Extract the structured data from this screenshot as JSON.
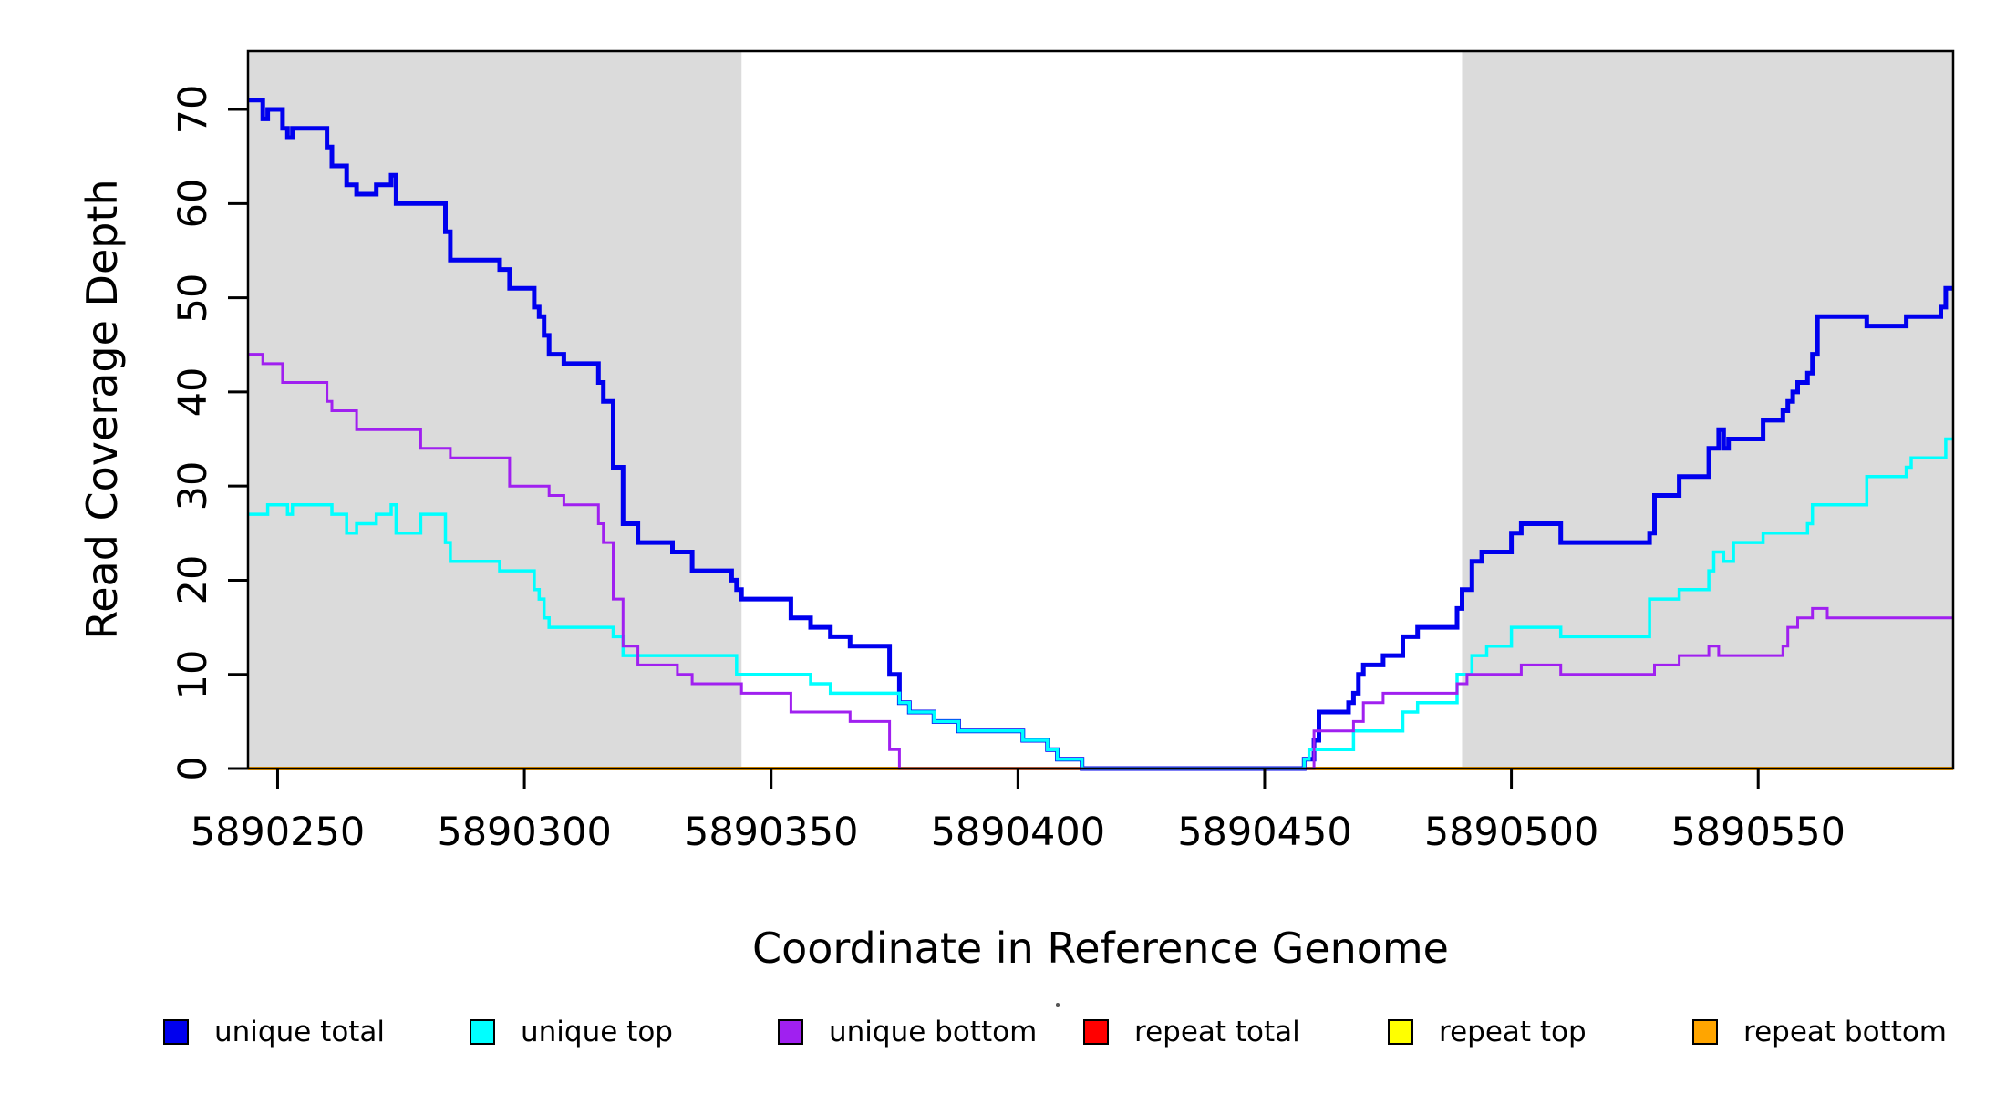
{
  "chart_data": {
    "type": "line",
    "step": "post",
    "title": "",
    "xlabel": "Coordinate in Reference Genome",
    "ylabel": "Read Coverage Depth",
    "xlim": [
      5890244,
      5890589.5
    ],
    "ylim": [
      0,
      76.2
    ],
    "xticks": [
      5890250,
      5890300,
      5890350,
      5890400,
      5890450,
      5890500,
      5890550
    ],
    "yticks": [
      0,
      10,
      20,
      30,
      40,
      50,
      60,
      70
    ],
    "grid": false,
    "background_color": "#ffffff",
    "axis_color": "#000000",
    "shaded_regions": {
      "color": "#dbdbdb",
      "regions": [
        [
          5890244,
          5890344
        ],
        [
          5890490,
          5890589.5
        ]
      ]
    },
    "legend": {
      "position": "bottom",
      "entries": [
        {
          "label": "unique total",
          "color": "#0000ee"
        },
        {
          "label": "unique top",
          "color": "#00ffff"
        },
        {
          "label": "unique bottom",
          "color": "#a020f0"
        },
        {
          "label": "repeat total",
          "color": "#ff0000"
        },
        {
          "label": "repeat top",
          "color": "#ffff00"
        },
        {
          "label": "repeat bottom",
          "color": "#ffa500"
        }
      ]
    },
    "series": [
      {
        "name": "repeat total",
        "color": "#ff0000",
        "width": 3,
        "points": [
          [
            5890244,
            0
          ]
        ]
      },
      {
        "name": "repeat top",
        "color": "#ffff00",
        "width": 3,
        "points": [
          [
            5890244,
            0
          ]
        ]
      },
      {
        "name": "repeat bottom",
        "color": "#ffa500",
        "width": 4,
        "points": [
          [
            5890244,
            0
          ]
        ]
      },
      {
        "name": "unique total",
        "color": "#0000ee",
        "width": 5,
        "points": [
          [
            5890244,
            71
          ],
          [
            5890247,
            69
          ],
          [
            5890248,
            70
          ],
          [
            5890251,
            68
          ],
          [
            5890252,
            67
          ],
          [
            5890253,
            68
          ],
          [
            5890260,
            66
          ],
          [
            5890261,
            64
          ],
          [
            5890264,
            62
          ],
          [
            5890266,
            61
          ],
          [
            5890270,
            62
          ],
          [
            5890273,
            63
          ],
          [
            5890274,
            60
          ],
          [
            5890284,
            57
          ],
          [
            5890285,
            54
          ],
          [
            5890295,
            53
          ],
          [
            5890297,
            51
          ],
          [
            5890302,
            49
          ],
          [
            5890303,
            48
          ],
          [
            5890304,
            46
          ],
          [
            5890305,
            44
          ],
          [
            5890308,
            43
          ],
          [
            5890315,
            41
          ],
          [
            5890316,
            39
          ],
          [
            5890318,
            32
          ],
          [
            5890320,
            26
          ],
          [
            5890323,
            24
          ],
          [
            5890330,
            23
          ],
          [
            5890334,
            21
          ],
          [
            5890342,
            20
          ],
          [
            5890343,
            19
          ],
          [
            5890344,
            18
          ],
          [
            5890354,
            16
          ],
          [
            5890358,
            15
          ],
          [
            5890362,
            14
          ],
          [
            5890366,
            13
          ],
          [
            5890374,
            10
          ],
          [
            5890376,
            7
          ],
          [
            5890378,
            6
          ],
          [
            5890383,
            5
          ],
          [
            5890388,
            4
          ],
          [
            5890401,
            3
          ],
          [
            5890406,
            2
          ],
          [
            5890408,
            1
          ],
          [
            5890413,
            0
          ],
          [
            5890458,
            1
          ],
          [
            5890460,
            3
          ],
          [
            5890461,
            6
          ],
          [
            5890467,
            7
          ],
          [
            5890468,
            8
          ],
          [
            5890469,
            10
          ],
          [
            5890470,
            11
          ],
          [
            5890474,
            12
          ],
          [
            5890478,
            14
          ],
          [
            5890481,
            15
          ],
          [
            5890489,
            17
          ],
          [
            5890490,
            19
          ],
          [
            5890492,
            22
          ],
          [
            5890494,
            23
          ],
          [
            5890500,
            25
          ],
          [
            5890502,
            26
          ],
          [
            5890510,
            24
          ],
          [
            5890528,
            25
          ],
          [
            5890529,
            29
          ],
          [
            5890534,
            31
          ],
          [
            5890540,
            34
          ],
          [
            5890542,
            36
          ],
          [
            5890543,
            34
          ],
          [
            5890544,
            35
          ],
          [
            5890551,
            37
          ],
          [
            5890555,
            38
          ],
          [
            5890556,
            39
          ],
          [
            5890557,
            40
          ],
          [
            5890558,
            41
          ],
          [
            5890560,
            42
          ],
          [
            5890561,
            44
          ],
          [
            5890562,
            48
          ],
          [
            5890572,
            47
          ],
          [
            5890580,
            48
          ],
          [
            5890587,
            49
          ],
          [
            5890588,
            51
          ]
        ]
      },
      {
        "name": "unique top",
        "color": "#00ffff",
        "width": 3.5,
        "points": [
          [
            5890244,
            27
          ],
          [
            5890248,
            28
          ],
          [
            5890252,
            27
          ],
          [
            5890253,
            28
          ],
          [
            5890261,
            27
          ],
          [
            5890264,
            25
          ],
          [
            5890266,
            26
          ],
          [
            5890270,
            27
          ],
          [
            5890273,
            28
          ],
          [
            5890274,
            25
          ],
          [
            5890279,
            27
          ],
          [
            5890284,
            24
          ],
          [
            5890285,
            22
          ],
          [
            5890295,
            21
          ],
          [
            5890302,
            19
          ],
          [
            5890303,
            18
          ],
          [
            5890304,
            16
          ],
          [
            5890305,
            15
          ],
          [
            5890318,
            14
          ],
          [
            5890320,
            12
          ],
          [
            5890343,
            10
          ],
          [
            5890358,
            9
          ],
          [
            5890362,
            8
          ],
          [
            5890376,
            7
          ],
          [
            5890378,
            6
          ],
          [
            5890383,
            5
          ],
          [
            5890388,
            4
          ],
          [
            5890401,
            3
          ],
          [
            5890406,
            2
          ],
          [
            5890408,
            1
          ],
          [
            5890413,
            0
          ],
          [
            5890458,
            1
          ],
          [
            5890459,
            2
          ],
          [
            5890468,
            4
          ],
          [
            5890478,
            6
          ],
          [
            5890481,
            7
          ],
          [
            5890489,
            10
          ],
          [
            5890492,
            12
          ],
          [
            5890495,
            13
          ],
          [
            5890500,
            15
          ],
          [
            5890510,
            14
          ],
          [
            5890528,
            18
          ],
          [
            5890534,
            19
          ],
          [
            5890540,
            21
          ],
          [
            5890541,
            23
          ],
          [
            5890543,
            22
          ],
          [
            5890545,
            24
          ],
          [
            5890551,
            25
          ],
          [
            5890560,
            26
          ],
          [
            5890561,
            28
          ],
          [
            5890572,
            31
          ],
          [
            5890580,
            32
          ],
          [
            5890581,
            33
          ],
          [
            5890588,
            35
          ]
        ]
      },
      {
        "name": "unique bottom",
        "color": "#a020f0",
        "width": 3,
        "points": [
          [
            5890244,
            44
          ],
          [
            5890247,
            43
          ],
          [
            5890251,
            41
          ],
          [
            5890260,
            39
          ],
          [
            5890261,
            38
          ],
          [
            5890266,
            36
          ],
          [
            5890279,
            34
          ],
          [
            5890285,
            33
          ],
          [
            5890297,
            30
          ],
          [
            5890305,
            29
          ],
          [
            5890308,
            28
          ],
          [
            5890315,
            26
          ],
          [
            5890316,
            24
          ],
          [
            5890318,
            18
          ],
          [
            5890320,
            13
          ],
          [
            5890323,
            11
          ],
          [
            5890331,
            10
          ],
          [
            5890334,
            9
          ],
          [
            5890344,
            8
          ],
          [
            5890354,
            6
          ],
          [
            5890366,
            5
          ],
          [
            5890374,
            2
          ],
          [
            5890376,
            0
          ],
          [
            5890460,
            4
          ],
          [
            5890468,
            5
          ],
          [
            5890470,
            7
          ],
          [
            5890474,
            8
          ],
          [
            5890489,
            9
          ],
          [
            5890491,
            10
          ],
          [
            5890502,
            11
          ],
          [
            5890510,
            10
          ],
          [
            5890529,
            11
          ],
          [
            5890534,
            12
          ],
          [
            5890540,
            13
          ],
          [
            5890542,
            12
          ],
          [
            5890555,
            13
          ],
          [
            5890556,
            15
          ],
          [
            5890558,
            16
          ],
          [
            5890561,
            17
          ],
          [
            5890564,
            16
          ]
        ]
      }
    ]
  }
}
